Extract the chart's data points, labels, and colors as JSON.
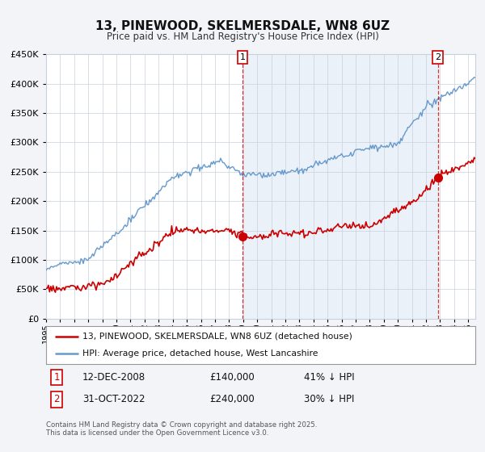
{
  "title": "13, PINEWOOD, SKELMERSDALE, WN8 6UZ",
  "subtitle": "Price paid vs. HM Land Registry's House Price Index (HPI)",
  "hpi_color": "#6699cc",
  "hpi_fill_color": "#dce8f5",
  "price_color": "#cc0000",
  "marker_color": "#cc0000",
  "annotation1_date": 2008.95,
  "annotation1_value": 140000,
  "annotation2_date": 2022.83,
  "annotation2_value": 240000,
  "annotation1_date_str": "12-DEC-2008",
  "annotation1_price": "£140,000",
  "annotation1_hpi": "41% ↓ HPI",
  "annotation2_date_str": "31-OCT-2022",
  "annotation2_price": "£240,000",
  "annotation2_hpi": "30% ↓ HPI",
  "ylim": [
    0,
    450000
  ],
  "xlim_start": 1995.0,
  "xlim_end": 2025.5,
  "legend_line1": "13, PINEWOOD, SKELMERSDALE, WN8 6UZ (detached house)",
  "legend_line2": "HPI: Average price, detached house, West Lancashire",
  "footer1": "Contains HM Land Registry data © Crown copyright and database right 2025.",
  "footer2": "This data is licensed under the Open Government Licence v3.0.",
  "background_color": "#f2f4f8",
  "plot_background": "#ffffff"
}
